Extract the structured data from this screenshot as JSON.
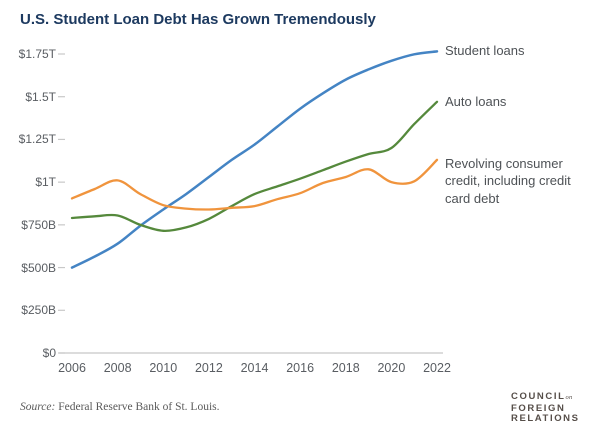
{
  "title": "U.S. Student Loan Debt Has Grown Tremendously",
  "source": {
    "prefix": "Source:",
    "text": "Federal Reserve Bank of St. Louis."
  },
  "logo": {
    "word1": "COUNCIL",
    "connector": "on",
    "word2": "FOREIGN",
    "word3": "RELATIONS"
  },
  "colors": {
    "title_text": "#1d3a60",
    "axis_text": "#595d62",
    "legend_text": "#4e5256",
    "axis_line": "#c8c8c8",
    "student_loans_line": "#4484c4",
    "auto_loans_line": "#55893c",
    "revolving_credit_line": "#f0943d"
  },
  "chart_data": {
    "type": "line",
    "title": "U.S. Student Loan Debt Has Grown Tremendously",
    "xlabel": "",
    "ylabel": "",
    "values_unit": "USD billions",
    "xlim": [
      2006,
      2022
    ],
    "ylim": [
      0,
      1750
    ],
    "grid": false,
    "legend_position": "right of line ends",
    "x": [
      2006,
      2007,
      2008,
      2009,
      2010,
      2011,
      2012,
      2013,
      2014,
      2015,
      2016,
      2017,
      2018,
      2019,
      2020,
      2021,
      2022
    ],
    "series": [
      {
        "name": "Student loans",
        "color": "#4484c4",
        "values": [
          500,
          565,
          640,
          745,
          840,
          930,
          1030,
          1130,
          1220,
          1325,
          1430,
          1520,
          1600,
          1660,
          1710,
          1748,
          1765
        ]
      },
      {
        "name": "Auto loans",
        "color": "#55893c",
        "values": [
          790,
          800,
          805,
          750,
          715,
          735,
          785,
          860,
          930,
          975,
          1020,
          1070,
          1120,
          1165,
          1200,
          1340,
          1470
        ]
      },
      {
        "name": "Revolving consumer credit, including credit card debt",
        "color": "#f0943d",
        "values": [
          905,
          960,
          1010,
          930,
          865,
          845,
          840,
          850,
          860,
          900,
          935,
          995,
          1030,
          1075,
          1000,
          1005,
          1130
        ]
      }
    ],
    "y_ticks": [
      {
        "value": 0,
        "label": "$0"
      },
      {
        "value": 250,
        "label": "$250B"
      },
      {
        "value": 500,
        "label": "$500B"
      },
      {
        "value": 750,
        "label": "$750B"
      },
      {
        "value": 1000,
        "label": "$1T"
      },
      {
        "value": 1250,
        "label": "$1.25T"
      },
      {
        "value": 1500,
        "label": "$1.5T"
      },
      {
        "value": 1750,
        "label": "$1.75T"
      }
    ],
    "x_ticks": [
      2006,
      2008,
      2010,
      2012,
      2014,
      2016,
      2018,
      2020,
      2022
    ]
  }
}
